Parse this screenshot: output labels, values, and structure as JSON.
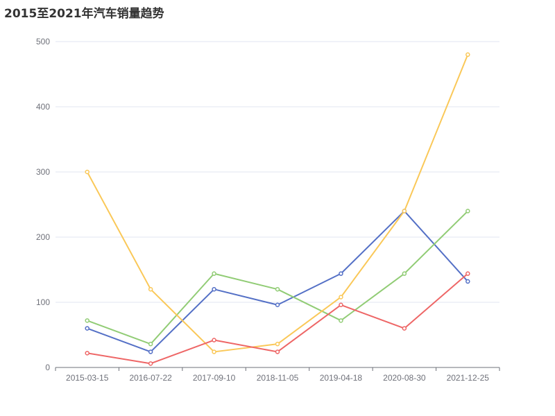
{
  "chart_data": {
    "type": "line",
    "title": "2015至2021年汽车销量趋势",
    "xlabel": "",
    "ylabel": "",
    "categories": [
      "2015-03-15",
      "2016-07-22",
      "2017-09-10",
      "2018-11-05",
      "2019-04-18",
      "2020-08-30",
      "2021-12-25"
    ],
    "ylim": [
      0,
      500
    ],
    "yticks": [
      0,
      100,
      200,
      300,
      400,
      500
    ],
    "grid": true,
    "series": [
      {
        "values": [
          60,
          24,
          120,
          96,
          144,
          240,
          132
        ],
        "color": "#5470c6"
      },
      {
        "values": [
          72,
          36,
          144,
          120,
          72,
          144,
          240
        ],
        "color": "#91cc75"
      },
      {
        "values": [
          300,
          120,
          24,
          36,
          108,
          240,
          480
        ],
        "color": "#fac858"
      },
      {
        "values": [
          22,
          6,
          42,
          24,
          96,
          60,
          144
        ],
        "color": "#ee6666"
      }
    ]
  }
}
